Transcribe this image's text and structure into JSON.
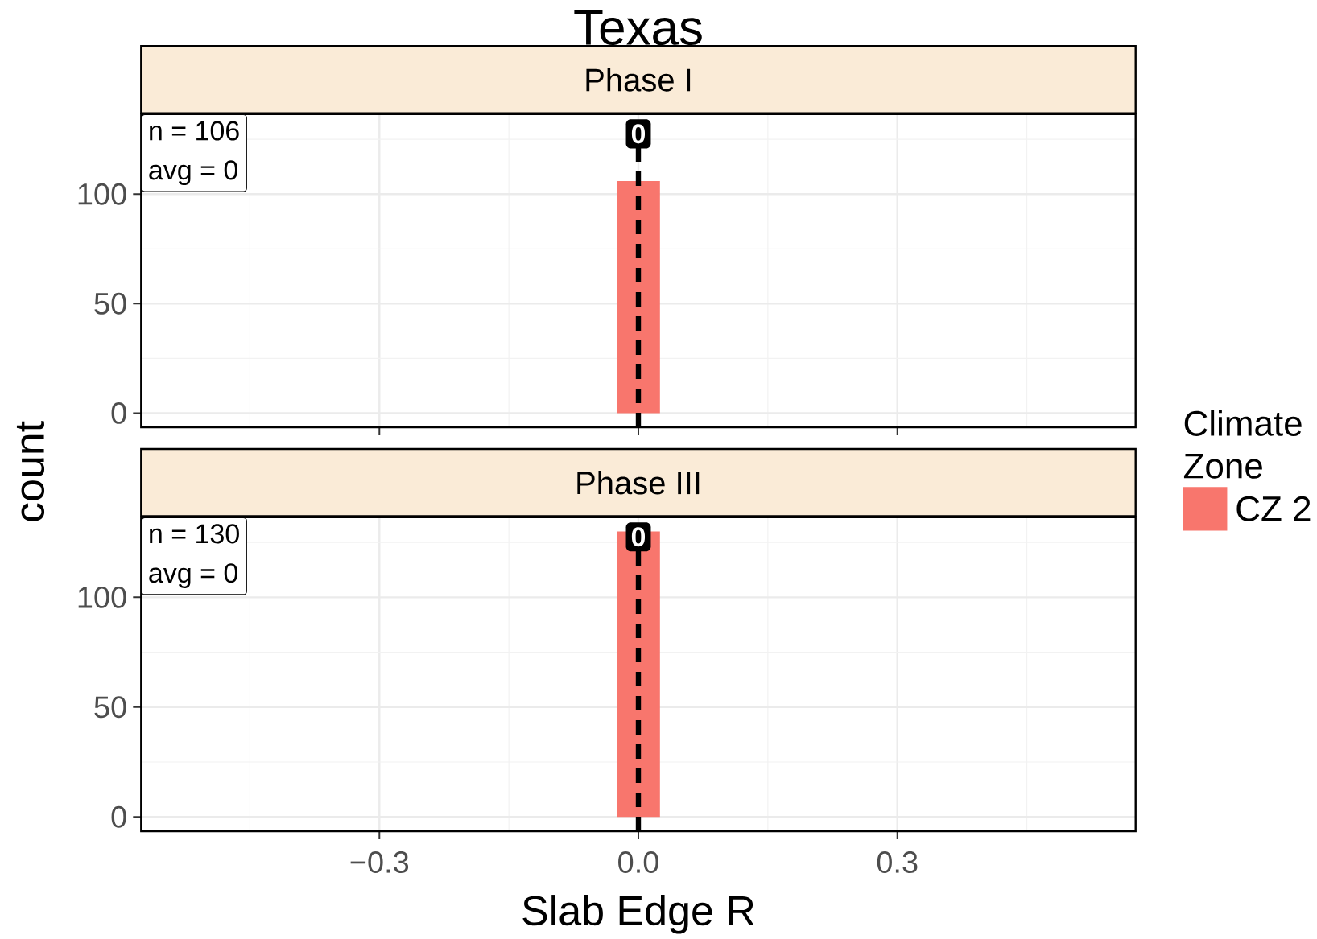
{
  "chart_data": [
    {
      "type": "histogram",
      "title": "Texas",
      "subtitle": "Phase I",
      "ylabel": "count",
      "legend_title": "Climate Zone",
      "legend": "right",
      "bins": [
        -0.525,
        -0.475,
        -0.425,
        -0.375,
        -0.325,
        -0.275,
        -0.225,
        -0.175,
        -0.125,
        -0.075,
        -0.025,
        0.025,
        0.075,
        0.125,
        0.175,
        0.225,
        0.275,
        0.325,
        0.375,
        0.425,
        0.475,
        0.525
      ],
      "series": [
        {
          "name": "CZ 2",
          "color": "#f8766d",
          "values": [
            0,
            0,
            0,
            0,
            0,
            0,
            0,
            0,
            0,
            0,
            106,
            0,
            0,
            0,
            0,
            0,
            0,
            0,
            0,
            0,
            0
          ]
        }
      ],
      "xlim": [
        -0.576,
        0.576
      ],
      "ylim": [
        -6.5,
        136.5
      ],
      "xticks": [
        {
          "value": -0.3,
          "label": null
        },
        {
          "value": 0,
          "label": null
        },
        {
          "value": 0.3,
          "label": null
        }
      ],
      "yticks": [
        0,
        50,
        100
      ],
      "tick_labels": "y",
      "grid": true,
      "ref_lines": [
        {
          "axis": "x",
          "value": 0,
          "label": "0",
          "color": "#000000",
          "line_style": "dashed"
        }
      ],
      "annotations": [
        "n = 106",
        "avg = 0"
      ]
    },
    {
      "type": "histogram",
      "title": "Phase III",
      "xlabel": "Slab Edge R",
      "bins": [
        -0.525,
        -0.475,
        -0.425,
        -0.375,
        -0.325,
        -0.275,
        -0.225,
        -0.175,
        -0.125,
        -0.075,
        -0.025,
        0.025,
        0.075,
        0.125,
        0.175,
        0.225,
        0.275,
        0.325,
        0.375,
        0.425,
        0.475,
        0.525
      ],
      "series": [
        {
          "color": "#f8766d",
          "values": [
            0,
            0,
            0,
            0,
            0,
            0,
            0,
            0,
            0,
            0,
            130,
            0,
            0,
            0,
            0,
            0,
            0,
            0,
            0,
            0,
            0
          ]
        }
      ],
      "xlim": [
        -0.576,
        0.576
      ],
      "ylim": [
        -6.5,
        136.5
      ],
      "xticks": [
        {
          "value": -0.3,
          "label": "−0.3"
        },
        {
          "value": 0,
          "label": "0.0"
        },
        {
          "value": 0.3,
          "label": "0.3"
        }
      ],
      "yticks": [
        0,
        50,
        100
      ],
      "grid": true,
      "ref_lines": [
        {
          "axis": "x",
          "value": 0,
          "label": "0",
          "color": "#000000",
          "line_style": "dashed"
        }
      ],
      "annotations": [
        "n = 130",
        "avg = 0"
      ]
    }
  ]
}
